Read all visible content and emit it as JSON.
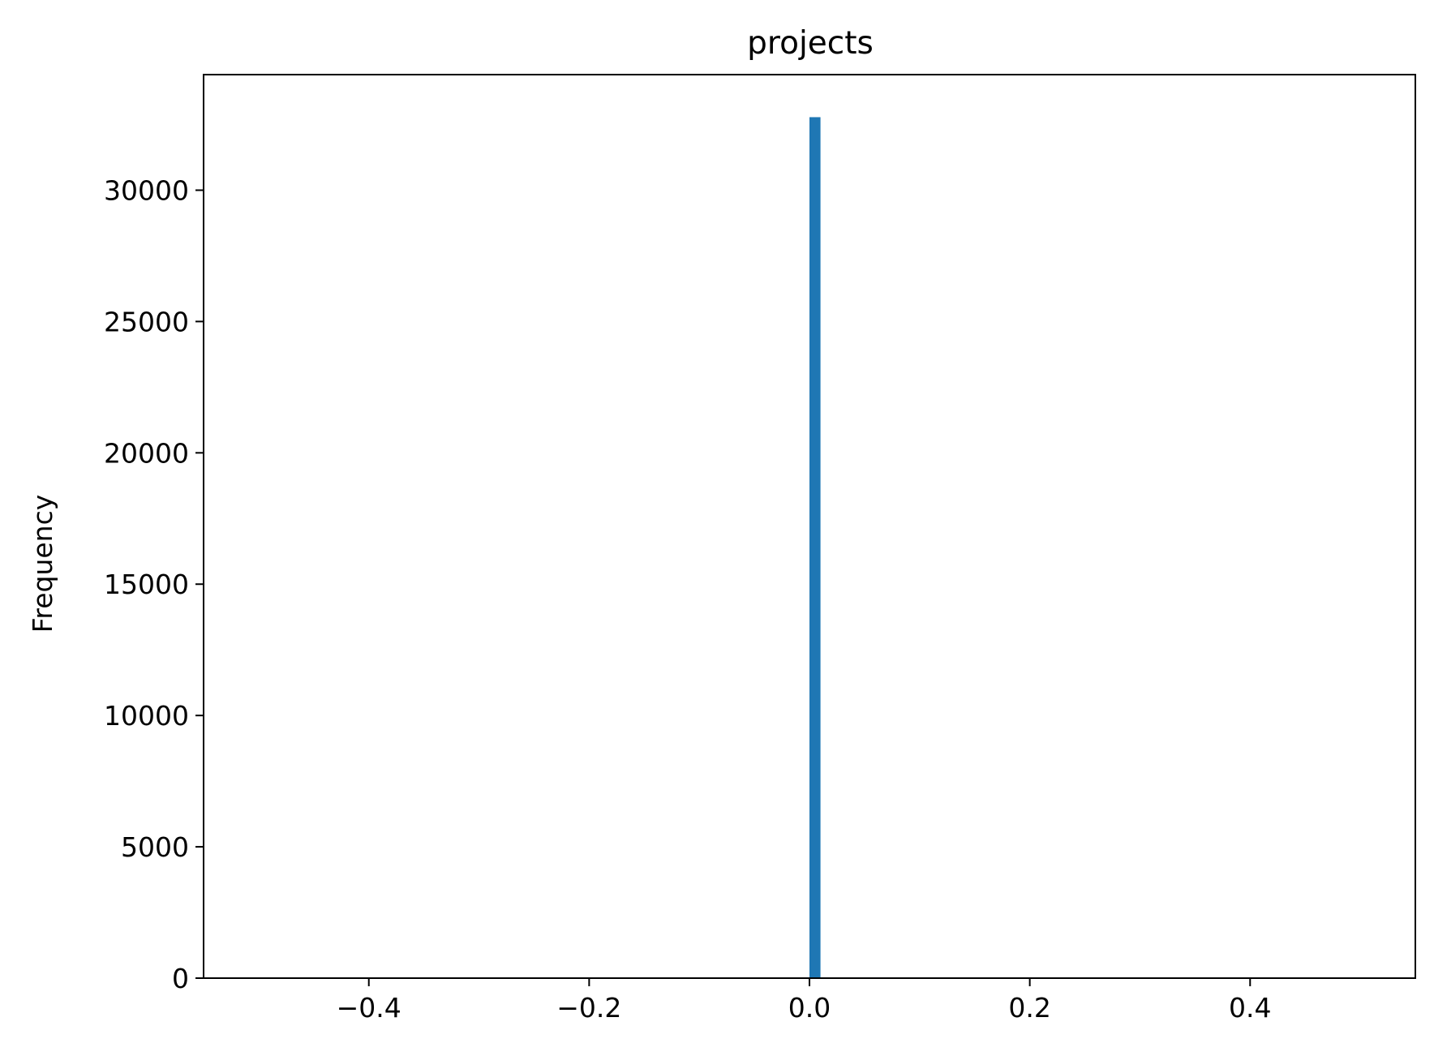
{
  "chart_data": {
    "type": "bar",
    "title": "projects",
    "xlabel": "",
    "ylabel": "Frequency",
    "xlim": [
      -0.55,
      0.55
    ],
    "ylim": [
      0,
      34400
    ],
    "x_ticks": [
      -0.4,
      -0.2,
      0.0,
      0.2,
      0.4
    ],
    "x_tick_labels": [
      "−0.4",
      "−0.2",
      "0.0",
      "0.2",
      "0.4"
    ],
    "y_ticks": [
      0,
      5000,
      10000,
      15000,
      20000,
      25000,
      30000
    ],
    "y_tick_labels": [
      "0",
      "5000",
      "10000",
      "15000",
      "20000",
      "25000",
      "30000"
    ],
    "bins": [
      {
        "x_start": 0.0,
        "x_end": 0.01,
        "value": 32780
      }
    ],
    "bar_color": "#1f77b4",
    "grid": false,
    "legend": "none"
  }
}
